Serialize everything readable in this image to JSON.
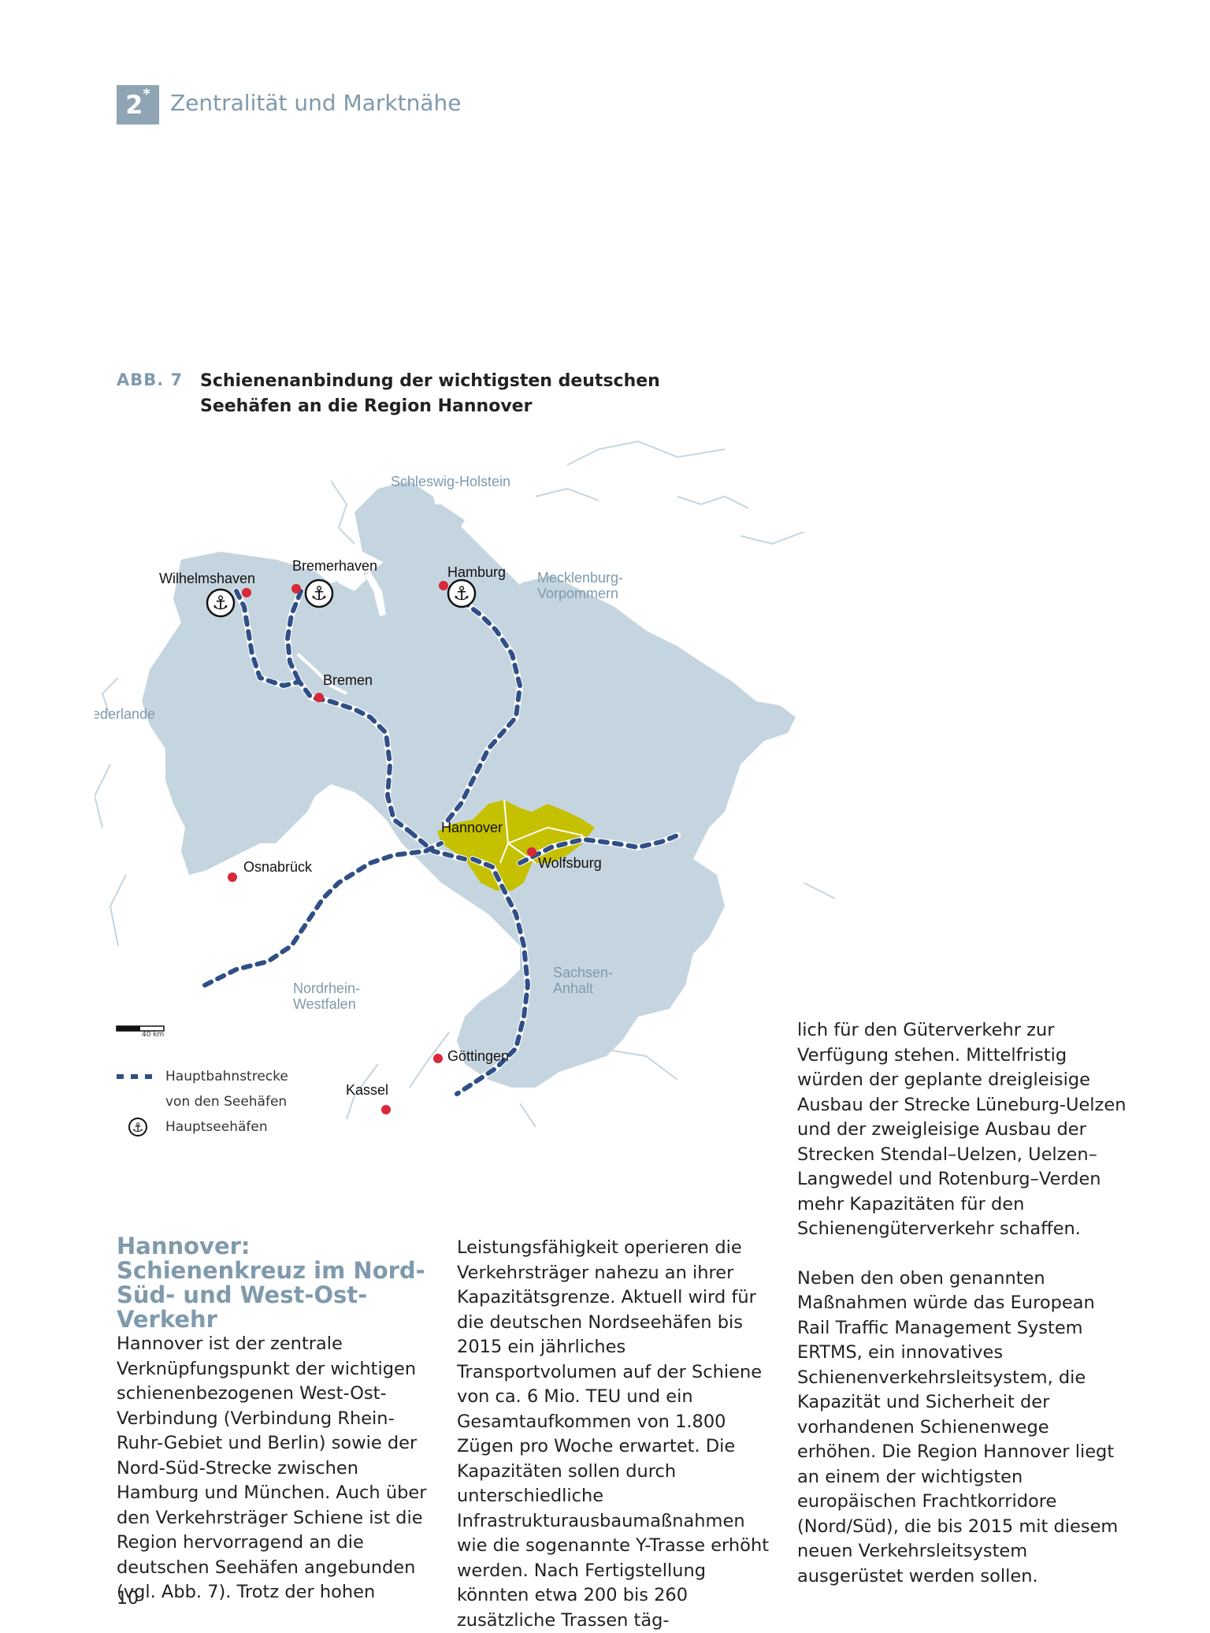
{
  "chapter": {
    "number": "2",
    "marker": "*",
    "title": "Zentralität und Marktnähe"
  },
  "figure": {
    "label": "ABB. 7",
    "title": "Schienenanbindung der wichtigsten deutschen Seehäfen an die Region Hannover"
  },
  "map": {
    "regions": [
      "Schleswig-Holstein",
      "Mecklenburg-Vorpommern",
      "Niederlande",
      "Nordrhein-Westfalen",
      "Sachsen-Anhalt"
    ],
    "region_lines": {
      "mv": [
        "Mecklenburg-",
        "Vorpommern"
      ],
      "nrw": [
        "Nordrhein-",
        "Westfalen"
      ],
      "sa": [
        "Sachsen-",
        "Anhalt"
      ]
    },
    "cities": [
      "Wilhelmshaven",
      "Bremerhaven",
      "Hamburg",
      "Bremen",
      "Hannover",
      "Wolfsburg",
      "Osnabrück",
      "Göttingen",
      "Kassel"
    ],
    "scale": "40 km",
    "colors": {
      "land": "#c5d5df",
      "hannover_region": "#c5c000",
      "city_dot": "#d8283a",
      "rail": "#2f4f86",
      "water_line": "#c5d5df"
    }
  },
  "legend": {
    "rail_label_1": "Hauptbahnstrecke",
    "rail_label_2": "von den Seehäfen",
    "port_label": "Hauptseehäfen",
    "port_icon": "anchor-icon"
  },
  "article": {
    "heading": "Hannover: Schienenkreuz im Nord-Süd- und West-Ost-Verkehr",
    "col1": "Hannover ist der zentrale Verknüpfungspunkt der wichtigen schienenbezogenen West-Ost-Verbindung (Verbindung Rhein-Ruhr-Gebiet und Berlin) sowie der Nord-Süd-Strecke zwischen Hamburg und München. Auch über den Verkehrsträger Schiene ist die Region hervorragend an die deutschen Seehäfen angebunden (vgl. Abb. 7). Trotz der hohen",
    "col2": "Leistungsfähigkeit operieren die Verkehrsträger nahezu an ihrer Kapazitätsgrenze. Aktuell wird für die deutschen Nordseehäfen bis 2015 ein jährliches Transportvolumen auf der Schiene von ca. 6 Mio. TEU und ein Gesamtaufkommen von 1.800 Zügen pro Woche erwartet. Die Kapazitäten sollen durch unterschiedliche Infrastrukturausbaumaßnahmen wie die sogenannte Y-Trasse erhöht werden. Nach Fertigstellung könnten etwa 200 bis 260 zusätzliche Trassen täg-",
    "col3_p1": "lich für den Güterverkehr zur Verfügung stehen. Mittelfristig würden der geplante dreigleisige Ausbau der Strecke Lüneburg-Uelzen und der zweigleisige Ausbau der Strecken Stendal–Uelzen, Uelzen–Langwedel und Rotenburg–Verden mehr Kapazitäten für den Schienengüterverkehr schaffen.",
    "col3_p2": "Neben den oben genannten Maßnahmen würde das European Rail Traffic Management System ERTMS, ein innovatives Schienenverkehrsleitsystem, die Kapazität und Sicherheit der vorhandenen Schienenwege erhöhen. Die Region Hannover liegt an einem der wichtigsten europäischen Frachtkorridore (Nord/Süd), die bis 2015 mit diesem neuen Verkehrsleitsystem ausgerüstet werden sollen."
  },
  "page_number": "10"
}
